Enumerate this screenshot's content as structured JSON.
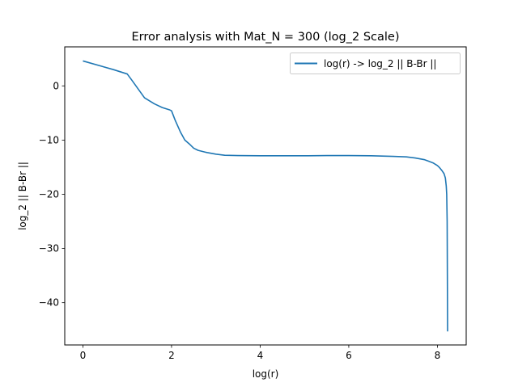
{
  "chart_data": {
    "type": "line",
    "title": "Error analysis with Mat_N = 300 (log_2 Scale)",
    "xlabel": "log(r)",
    "ylabel": "log_2 || B-Br ||",
    "xlim": [
      -0.41,
      8.65
    ],
    "ylim": [
      -47.8,
      7.2
    ],
    "xticks": [
      0,
      2,
      4,
      6,
      8
    ],
    "yticks": [
      0,
      -10,
      -20,
      -30,
      -40
    ],
    "xtick_labels": [
      "0",
      "2",
      "4",
      "6",
      "8"
    ],
    "ytick_labels": [
      "0",
      "−10",
      "−20",
      "−30",
      "−40"
    ],
    "grid": false,
    "legend_position": "upper right",
    "series": [
      {
        "name": "log(r) -> log_2 || B-Br ||",
        "color": "#1f77b4",
        "x": [
          0,
          0.69,
          1.0,
          1.1,
          1.39,
          1.61,
          1.79,
          1.95,
          2.0,
          2.08,
          2.2,
          2.3,
          2.4,
          2.5,
          2.6,
          2.7,
          2.8,
          3.0,
          3.2,
          3.5,
          4.0,
          4.5,
          5.0,
          5.5,
          6.0,
          6.5,
          7.0,
          7.3,
          7.5,
          7.7,
          7.8,
          7.9,
          8.0,
          8.05,
          8.1,
          8.15,
          8.18,
          8.2,
          8.21,
          8.22,
          8.225,
          8.23
        ],
        "y": [
          4.6,
          3.0,
          2.2,
          1.1,
          -2.2,
          -3.3,
          -4.0,
          -4.4,
          -4.6,
          -6.3,
          -8.5,
          -10.0,
          -10.7,
          -11.5,
          -11.9,
          -12.1,
          -12.3,
          -12.6,
          -12.8,
          -12.85,
          -12.9,
          -12.9,
          -12.9,
          -12.85,
          -12.85,
          -12.9,
          -13.0,
          -13.1,
          -13.3,
          -13.6,
          -13.9,
          -14.2,
          -14.7,
          -15.1,
          -15.6,
          -16.2,
          -17.0,
          -18.5,
          -20.0,
          -25.0,
          -35.0,
          -45.3
        ]
      }
    ]
  }
}
